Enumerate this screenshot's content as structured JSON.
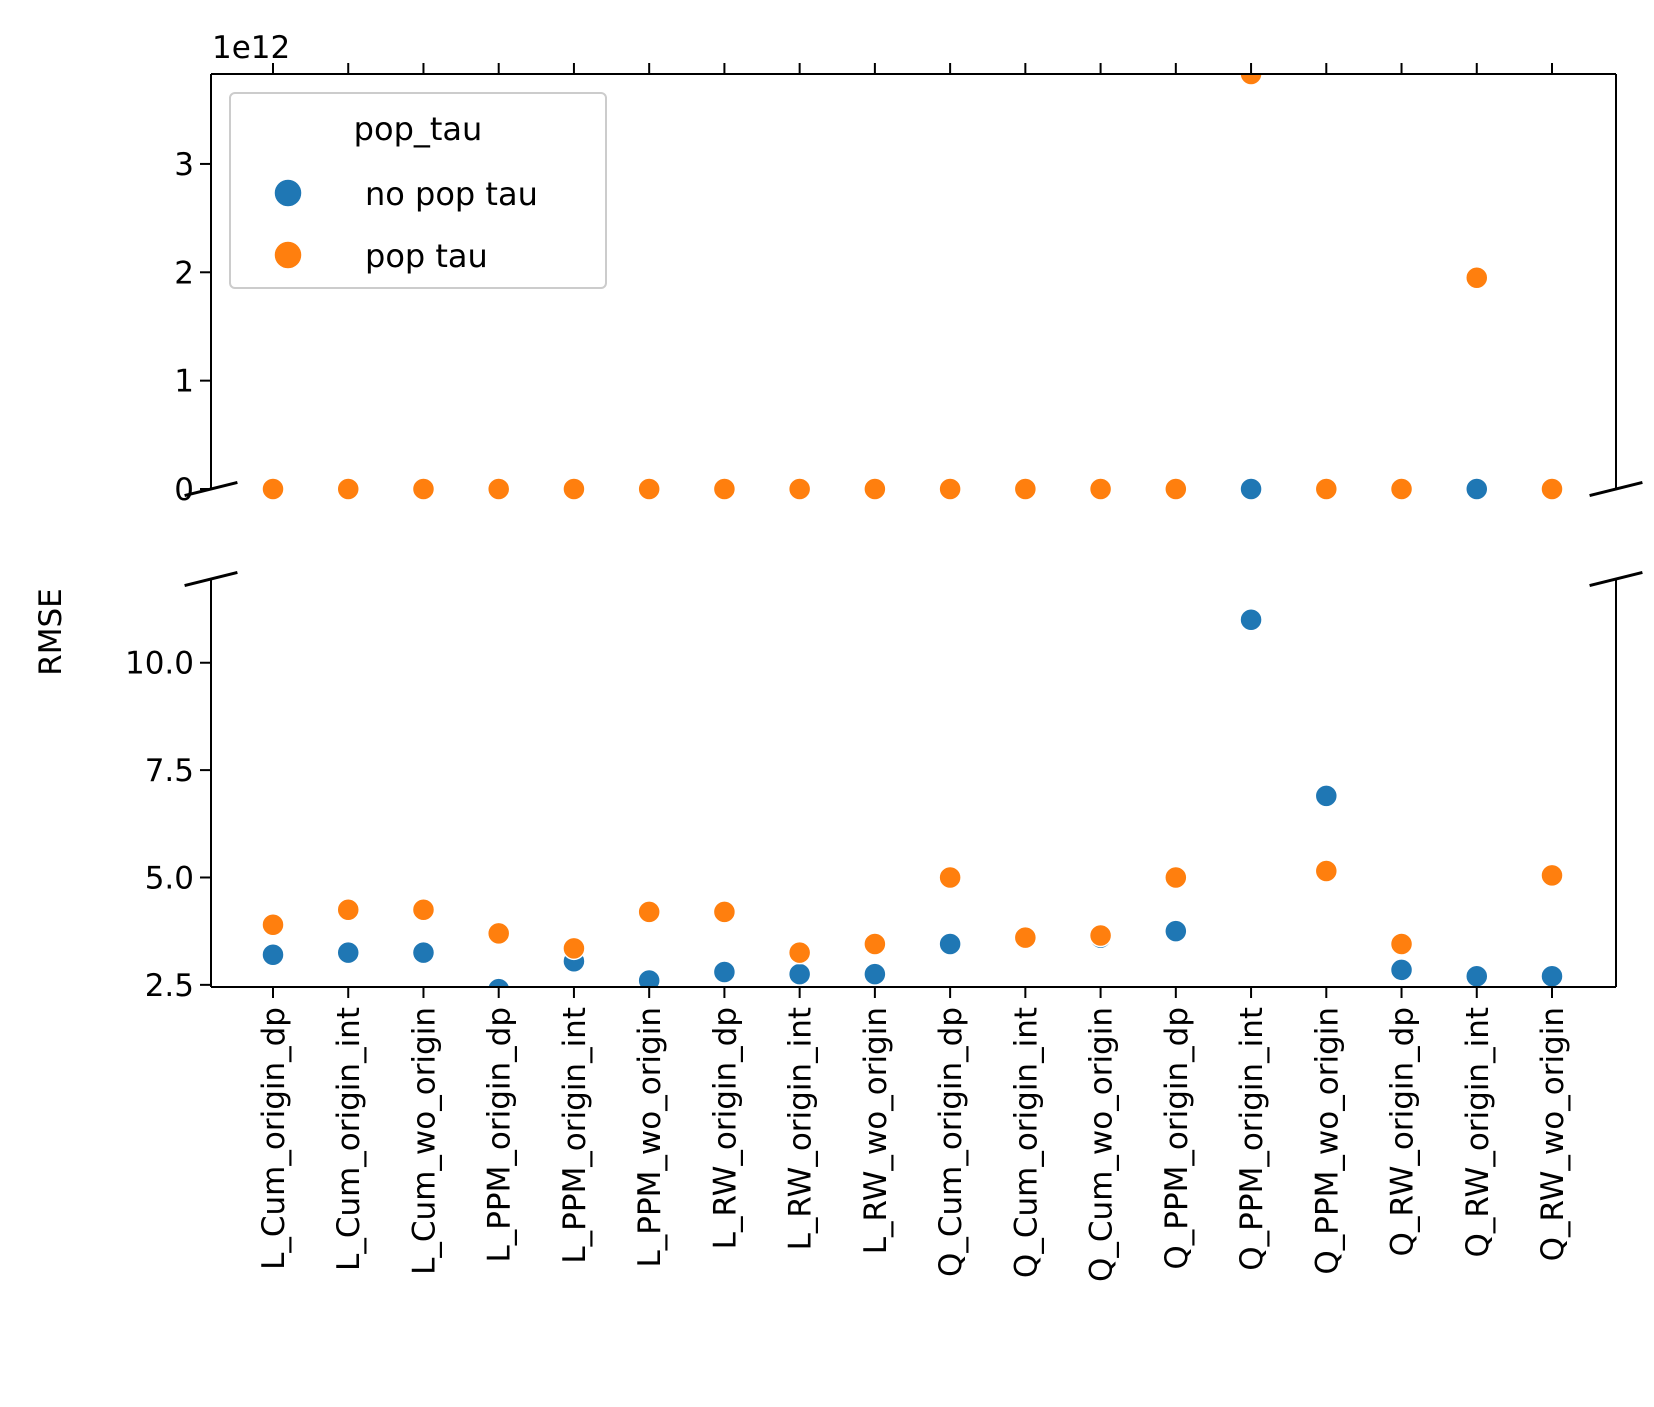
{
  "chart_data": {
    "type": "scatter",
    "layout": "broken-y-axis",
    "ylabel": "RMSE",
    "xlabel": "",
    "top_axis_offset_text": "1e12",
    "categories": [
      "L_Cum_origin_dp",
      "L_Cum_origin_int",
      "L_Cum_wo_origin",
      "L_PPM_origin_dp",
      "L_PPM_origin_int",
      "L_PPM_wo_origin",
      "L_RW_origin_dp",
      "L_RW_origin_int",
      "L_RW_wo_origin",
      "Q_Cum_origin_dp",
      "Q_Cum_origin_int",
      "Q_Cum_wo_origin",
      "Q_PPM_origin_dp",
      "Q_PPM_origin_int",
      "Q_PPM_wo_origin",
      "Q_RW_origin_dp",
      "Q_RW_origin_int",
      "Q_RW_wo_origin"
    ],
    "series": [
      {
        "name": "no pop tau",
        "color": "#1f77b4",
        "values": [
          3.2,
          3.25,
          3.25,
          2.4,
          3.05,
          2.6,
          2.8,
          2.75,
          2.75,
          3.45,
          3.6,
          3.6,
          3.75,
          11.0,
          6.9,
          2.85,
          2.7,
          2.7
        ]
      },
      {
        "name": "pop tau",
        "color": "#ff7f0e",
        "values": [
          3.9,
          4.25,
          4.25,
          3.7,
          3.35,
          4.2,
          4.2,
          3.25,
          3.45,
          5.0,
          3.6,
          3.65,
          5.0,
          3830000000000,
          5.15,
          3.45,
          1950000000000,
          5.05
        ]
      }
    ],
    "top_panel": {
      "ylim": [
        0,
        3830000000000
      ],
      "ytick_values": [
        0,
        1,
        2,
        3
      ],
      "ytick_labels": [
        "0",
        "1",
        "2",
        "3"
      ],
      "tick_scale": 1000000000000
    },
    "bottom_panel": {
      "ylim": [
        2.45,
        11.95
      ],
      "ytick_values": [
        2.5,
        5.0,
        7.5,
        10.0
      ],
      "ytick_labels": [
        "2.5",
        "5.0",
        "7.5",
        "10.0"
      ]
    },
    "legend": {
      "title": "pop_tau",
      "location": "upper-left",
      "entries": [
        "no pop tau",
        "pop tau"
      ]
    }
  }
}
